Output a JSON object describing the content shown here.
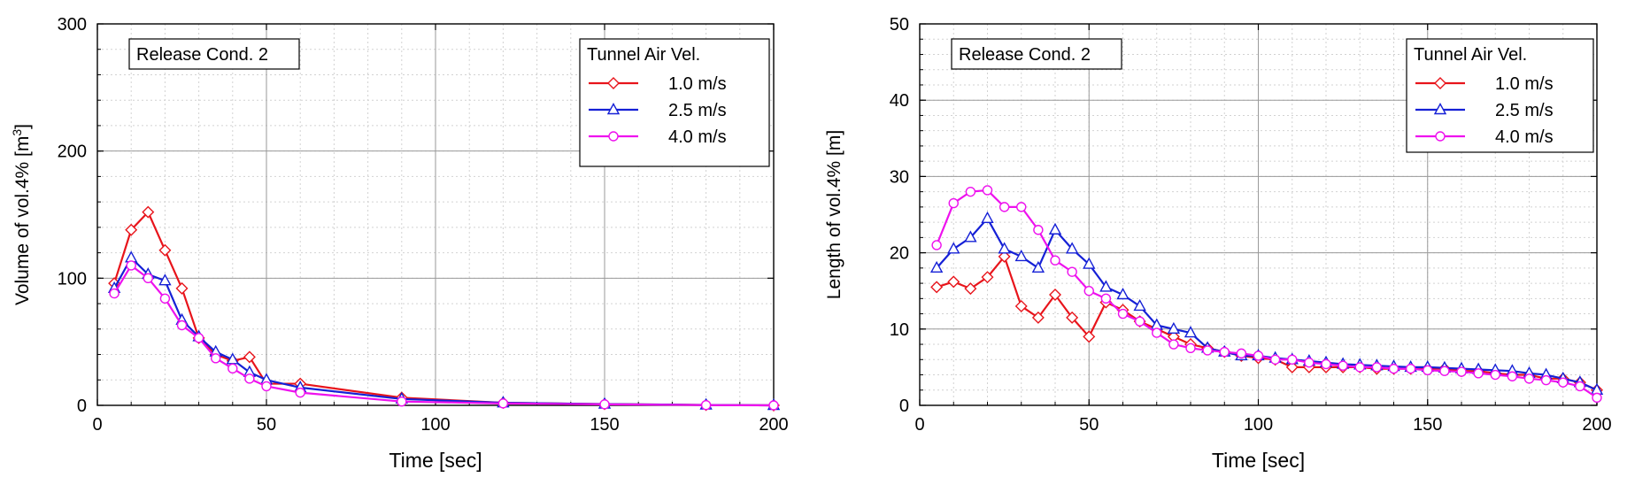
{
  "chart_data": [
    {
      "type": "line",
      "annotation": "Release Cond. 2",
      "xlabel": "Time [sec]",
      "ylabel": "Volume of vol.4% [m",
      "ylabel_sup": "3",
      "ylabel_tail": "]",
      "xlim": [
        0,
        200
      ],
      "ylim": [
        0,
        300
      ],
      "xticks": [
        0,
        50,
        100,
        150,
        200
      ],
      "yticks": [
        0,
        100,
        200,
        300
      ],
      "grid": true,
      "legend_title": "Tunnel Air Vel.",
      "legend_position": "top-right",
      "series": [
        {
          "name": "1.0 m/s",
          "color": "#e8141b",
          "marker": "diamond",
          "x": [
            5,
            10,
            15,
            20,
            25,
            30,
            35,
            40,
            45,
            50,
            60,
            90,
            120,
            150,
            180,
            200
          ],
          "y": [
            96,
            138,
            152,
            122,
            92,
            53,
            40,
            35,
            38,
            17,
            17,
            6,
            2,
            1,
            0.3,
            0
          ]
        },
        {
          "name": "2.5 m/s",
          "color": "#1520d6",
          "marker": "triangle",
          "x": [
            5,
            10,
            15,
            20,
            25,
            30,
            35,
            40,
            45,
            50,
            60,
            90,
            120,
            150,
            180,
            200
          ],
          "y": [
            92,
            116,
            103,
            98,
            67,
            54,
            42,
            36,
            26,
            20,
            14,
            5,
            2,
            1,
            0.3,
            0
          ]
        },
        {
          "name": "4.0 m/s",
          "color": "#ee11ee",
          "marker": "circle",
          "x": [
            5,
            10,
            15,
            20,
            25,
            30,
            35,
            40,
            45,
            50,
            60,
            90,
            120,
            150,
            180,
            200
          ],
          "y": [
            88,
            110,
            100,
            84,
            63,
            53,
            37,
            29,
            21,
            15,
            10,
            3,
            1.5,
            0.8,
            0.2,
            0
          ]
        }
      ]
    },
    {
      "type": "line",
      "annotation": "Release Cond. 2",
      "xlabel": "Time [sec]",
      "ylabel": "Length of vol.4% [m]",
      "xlim": [
        0,
        200
      ],
      "ylim": [
        0,
        50
      ],
      "xticks": [
        0,
        50,
        100,
        150,
        200
      ],
      "yticks": [
        0,
        10,
        20,
        30,
        40,
        50
      ],
      "grid": true,
      "legend_title": "Tunnel Air Vel.",
      "legend_position": "top-right",
      "series": [
        {
          "name": "1.0 m/s",
          "color": "#e8141b",
          "marker": "diamond",
          "x": [
            5,
            10,
            15,
            20,
            25,
            30,
            35,
            40,
            45,
            50,
            55,
            60,
            65,
            70,
            75,
            80,
            85,
            90,
            95,
            100,
            105,
            110,
            115,
            120,
            125,
            130,
            135,
            140,
            145,
            150,
            155,
            160,
            165,
            170,
            175,
            180,
            185,
            190,
            195,
            200
          ],
          "y": [
            15.5,
            16.2,
            15.3,
            16.8,
            19.5,
            13.0,
            11.5,
            14.5,
            11.5,
            9.0,
            13.5,
            12.5,
            11.0,
            10.0,
            9.0,
            8.0,
            7.5,
            7.0,
            6.5,
            6.2,
            6.0,
            5.0,
            5.0,
            5.0,
            5.0,
            5.0,
            4.8,
            4.8,
            4.8,
            4.8,
            4.8,
            4.5,
            4.5,
            4.2,
            4.0,
            4.0,
            3.5,
            3.5,
            3.0,
            2.0
          ]
        },
        {
          "name": "2.5 m/s",
          "color": "#1520d6",
          "marker": "triangle",
          "x": [
            5,
            10,
            15,
            20,
            25,
            30,
            35,
            40,
            45,
            50,
            55,
            60,
            65,
            70,
            75,
            80,
            85,
            90,
            95,
            100,
            105,
            110,
            115,
            120,
            125,
            130,
            135,
            140,
            145,
            150,
            155,
            160,
            165,
            170,
            175,
            180,
            185,
            190,
            195,
            200
          ],
          "y": [
            18.0,
            20.5,
            22.0,
            24.5,
            20.5,
            19.5,
            18.0,
            23.0,
            20.5,
            18.5,
            15.5,
            14.5,
            13.0,
            10.5,
            10.0,
            9.5,
            7.5,
            7.0,
            6.5,
            6.5,
            6.2,
            6.0,
            5.8,
            5.6,
            5.4,
            5.3,
            5.2,
            5.1,
            5.0,
            5.0,
            4.9,
            4.8,
            4.7,
            4.6,
            4.5,
            4.2,
            4.0,
            3.5,
            3.0,
            2.0
          ]
        },
        {
          "name": "4.0 m/s",
          "color": "#ee11ee",
          "marker": "circle",
          "x": [
            5,
            10,
            15,
            20,
            25,
            30,
            35,
            40,
            45,
            50,
            55,
            60,
            65,
            70,
            75,
            80,
            85,
            90,
            95,
            100,
            105,
            110,
            115,
            120,
            125,
            130,
            135,
            140,
            145,
            150,
            155,
            160,
            165,
            170,
            175,
            180,
            185,
            190,
            195,
            200
          ],
          "y": [
            21.0,
            26.5,
            28.0,
            28.2,
            26.0,
            26.0,
            23.0,
            19.0,
            17.5,
            15.0,
            14.0,
            12.0,
            11.0,
            9.5,
            8.0,
            7.5,
            7.2,
            7.0,
            6.8,
            6.5,
            6.0,
            6.0,
            5.6,
            5.4,
            5.2,
            5.0,
            5.0,
            4.8,
            4.8,
            4.6,
            4.5,
            4.4,
            4.2,
            4.0,
            3.8,
            3.5,
            3.3,
            3.0,
            2.5,
            1.0
          ]
        }
      ]
    }
  ]
}
